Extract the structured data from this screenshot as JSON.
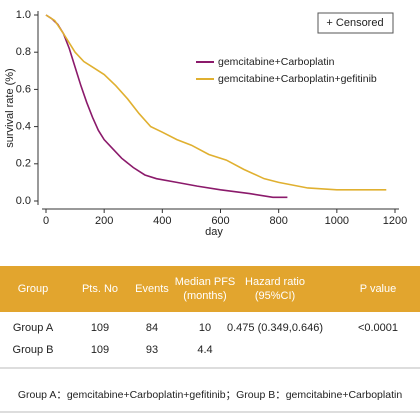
{
  "chart_data": {
    "type": "line",
    "xlabel": "day",
    "ylabel": "survival rate (%)",
    "censored_label": "+ Censored",
    "xlim": [
      0,
      1200
    ],
    "xticks": [
      0,
      200,
      400,
      600,
      800,
      1000,
      1200
    ],
    "ylim": [
      0,
      1
    ],
    "yticks": [
      {
        "value": 0,
        "label": "0.0"
      },
      {
        "value": 0.2,
        "label": "0.2"
      },
      {
        "value": 0.4,
        "label": "0.4"
      },
      {
        "value": 0.6,
        "label": "0.6"
      },
      {
        "value": 0.8,
        "label": "0.8"
      },
      {
        "value": 1,
        "label": "1.0"
      }
    ],
    "series": [
      {
        "name": "gemcitabine+Carboplatin",
        "color": "#8b1a6b",
        "x": [
          0,
          20,
          40,
          60,
          80,
          100,
          120,
          140,
          160,
          180,
          200,
          230,
          260,
          300,
          340,
          380,
          450,
          520,
          600,
          700,
          780,
          830
        ],
        "values": [
          1,
          0.98,
          0.95,
          0.9,
          0.82,
          0.72,
          0.62,
          0.53,
          0.45,
          0.38,
          0.33,
          0.28,
          0.23,
          0.18,
          0.14,
          0.12,
          0.1,
          0.08,
          0.06,
          0.04,
          0.02,
          0.02
        ]
      },
      {
        "name": "gemcitabine+Carboplatin+gefitinib",
        "color": "#e0b030",
        "x": [
          0,
          30,
          60,
          80,
          100,
          130,
          160,
          200,
          240,
          280,
          320,
          360,
          400,
          450,
          500,
          560,
          620,
          680,
          750,
          800,
          900,
          1000,
          1170
        ],
        "values": [
          1,
          0.97,
          0.9,
          0.85,
          0.8,
          0.75,
          0.72,
          0.68,
          0.62,
          0.55,
          0.47,
          0.4,
          0.37,
          0.33,
          0.3,
          0.25,
          0.22,
          0.17,
          0.12,
          0.1,
          0.07,
          0.06,
          0.06
        ]
      }
    ]
  },
  "table": {
    "header": [
      [
        "Group"
      ],
      [
        "Pts. No"
      ],
      [
        "Events"
      ],
      [
        "Median PFS",
        "(months)"
      ],
      [
        "Hazard ratio",
        "(95%CI)"
      ],
      [
        "P value"
      ]
    ],
    "rows": [
      [
        "Group A",
        "109",
        "84",
        "10",
        "0.475 (0.349,0.646)",
        "<0.0001"
      ],
      [
        "Group B",
        "109",
        "93",
        "4.4"
      ]
    ]
  },
  "footnote": "Group A：gemcitabine+Carboplatin+gefitinib；Group B：gemcitabine+Carboplatin"
}
